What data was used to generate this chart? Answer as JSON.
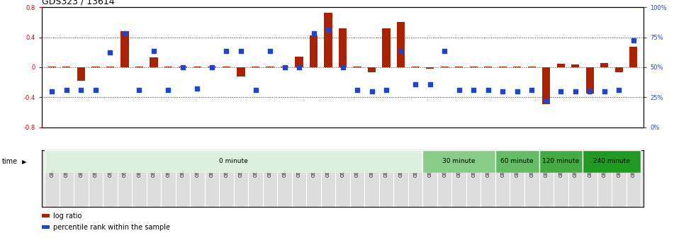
{
  "title": "GDS323 / 13614",
  "samples": [
    "GSM5811",
    "GSM5812",
    "GSM5813",
    "GSM5814",
    "GSM5815",
    "GSM5816",
    "GSM5817",
    "GSM5818",
    "GSM5819",
    "GSM5820",
    "GSM5821",
    "GSM5822",
    "GSM5823",
    "GSM5824",
    "GSM5825",
    "GSM5826",
    "GSM5827",
    "GSM5828",
    "GSM5829",
    "GSM5830",
    "GSM5831",
    "GSM5832",
    "GSM5833",
    "GSM5834",
    "GSM5835",
    "GSM5836",
    "GSM5837",
    "GSM5838",
    "GSM5839",
    "GSM5840",
    "GSM5841",
    "GSM5842",
    "GSM5843",
    "GSM5844",
    "GSM5845",
    "GSM5846",
    "GSM5847",
    "GSM5848",
    "GSM5849",
    "GSM5850",
    "GSM5851"
  ],
  "log_ratio": [
    0.01,
    0.01,
    -0.18,
    0.01,
    0.01,
    0.48,
    0.01,
    0.13,
    0.01,
    0.01,
    0.01,
    0.01,
    0.01,
    -0.12,
    0.01,
    0.01,
    0.01,
    0.14,
    0.42,
    0.73,
    0.52,
    0.01,
    -0.07,
    0.52,
    0.6,
    0.01,
    -0.02,
    0.01,
    0.01,
    0.01,
    0.01,
    0.01,
    0.01,
    0.01,
    -0.49,
    0.05,
    0.04,
    -0.35,
    0.06,
    -0.07,
    0.27
  ],
  "percentile_left": [
    -0.32,
    -0.3,
    -0.3,
    -0.3,
    0.2,
    0.45,
    -0.3,
    0.22,
    -0.3,
    0.0,
    -0.28,
    0.0,
    0.22,
    0.22,
    -0.3,
    0.22,
    0.0,
    0.0,
    0.45,
    0.5,
    0.0,
    -0.3,
    -0.32,
    -0.3,
    0.22,
    -0.23,
    -0.23,
    0.22,
    -0.3,
    -0.3,
    -0.3,
    -0.32,
    -0.32,
    -0.3,
    -0.44,
    -0.32,
    -0.32,
    -0.32,
    -0.32,
    -0.3,
    0.36
  ],
  "time_groups": [
    {
      "label": "0 minute",
      "start": 0,
      "end": 26,
      "color": "#ddf0dd"
    },
    {
      "label": "30 minute",
      "start": 26,
      "end": 31,
      "color": "#88cc88"
    },
    {
      "label": "60 minute",
      "start": 31,
      "end": 34,
      "color": "#66bb66"
    },
    {
      "label": "120 minute",
      "start": 34,
      "end": 37,
      "color": "#44aa44"
    },
    {
      "label": "240 minute",
      "start": 37,
      "end": 41,
      "color": "#229922"
    }
  ],
  "bar_color": "#aa2200",
  "dot_color": "#2244cc",
  "ylim": [
    -0.8,
    0.8
  ],
  "yticks_left": [
    -0.8,
    -0.4,
    0.0,
    0.4,
    0.8
  ],
  "yticks_right_pos": [
    -0.8,
    -0.4,
    0.0,
    0.4,
    0.8
  ],
  "yticks_right_labels": [
    "0%",
    "25%",
    "50%",
    "75%",
    "100%"
  ],
  "hlines": [
    -0.4,
    0.0,
    0.4
  ],
  "bar_width": 0.55,
  "dot_size": 25,
  "title_fontsize": 9,
  "tick_fontsize": 6,
  "xlabel_fontsize": 4.8,
  "legend_items": [
    "log ratio",
    "percentile rank within the sample"
  ],
  "legend_colors": [
    "#aa2200",
    "#2244cc"
  ],
  "sample_bg_color": "#dddddd",
  "time_label_fontsize": 7,
  "time_group_fontsize": 6.5
}
